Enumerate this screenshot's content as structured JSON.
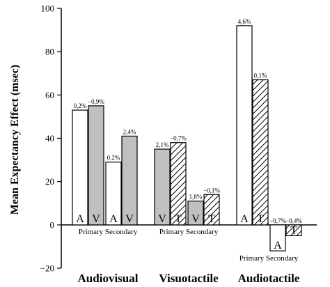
{
  "chart_data": {
    "type": "bar",
    "ylabel": "Mean Expectancy Effect (msec)",
    "ylim": [
      -20,
      100
    ],
    "yticks": [
      -20,
      0,
      20,
      40,
      60,
      80,
      100
    ],
    "colors": {
      "auditory": "#ffffff",
      "visual": "#c0c0c0",
      "tactile": "hatched"
    },
    "groups": [
      {
        "label": "Audiovisual",
        "sublabels": [
          "Primary",
          "Secondary"
        ],
        "bars": [
          {
            "modality": "A",
            "role": "Primary",
            "value": 53,
            "pct": "0,2%"
          },
          {
            "modality": "V",
            "role": "Primary",
            "value": 55,
            "pct": "−0,9%"
          },
          {
            "modality": "A",
            "role": "Secondary",
            "value": 29,
            "pct": "0.2%"
          },
          {
            "modality": "V",
            "role": "Secondary",
            "value": 41,
            "pct": "2,4%"
          }
        ]
      },
      {
        "label": "Visuotactile",
        "sublabels": [
          "Primary",
          "Secondary"
        ],
        "bars": [
          {
            "modality": "V",
            "role": "Primary",
            "value": 35,
            "pct": "2,1%"
          },
          {
            "modality": "T",
            "role": "Primary",
            "value": 38,
            "pct": "−0,7%"
          },
          {
            "modality": "V",
            "role": "Secondary",
            "value": 11,
            "pct": "1,8%"
          },
          {
            "modality": "T",
            "role": "Secondary",
            "value": 14,
            "pct": "−0,1%"
          }
        ]
      },
      {
        "label": "Audiotactile",
        "sublabels": [
          "Primary",
          "Secondary"
        ],
        "bars": [
          {
            "modality": "A",
            "role": "Primary",
            "value": 92,
            "pct": "4,6%"
          },
          {
            "modality": "T",
            "role": "Primary",
            "value": 67,
            "pct": "0,1%"
          },
          {
            "modality": "A",
            "role": "Secondary",
            "value": -12,
            "pct": "−0,7%"
          },
          {
            "modality": "T",
            "role": "Secondary",
            "value": -5,
            "pct": "−0,4%"
          }
        ]
      }
    ]
  }
}
